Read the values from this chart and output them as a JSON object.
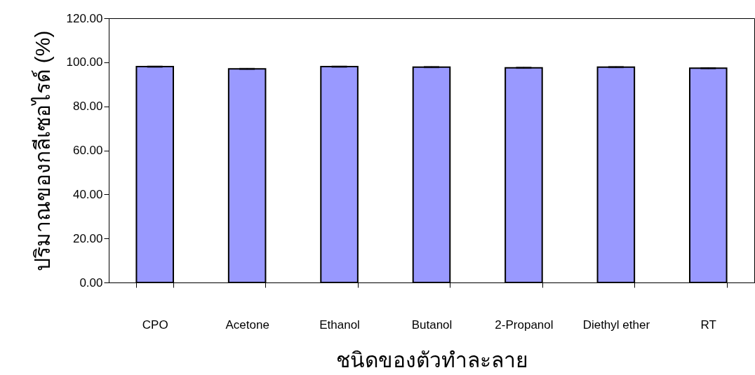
{
  "chart_data": {
    "type": "bar",
    "xlabel": "ชนิดของตัวทำละลาย",
    "ylabel": "ปริมาณของกลีเซอไรด์ (%)",
    "categories": [
      "CPO",
      "Acetone",
      "Ethanol",
      "Butanol",
      "2-Propanol",
      "Diethyl ether",
      "RT"
    ],
    "values": [
      98.0,
      97.0,
      98.0,
      97.8,
      97.5,
      97.8,
      97.3
    ],
    "errors": [
      0.3,
      0.3,
      0.3,
      0.3,
      0.3,
      0.3,
      0.3
    ],
    "color": "#9999ff",
    "ylim": [
      0,
      120
    ],
    "yticks": [
      {
        "value": 0,
        "label": "0.00"
      },
      {
        "value": 20,
        "label": "20.00"
      },
      {
        "value": 40,
        "label": "40.00"
      },
      {
        "value": 60,
        "label": "60.00"
      },
      {
        "value": 80,
        "label": "80.00"
      },
      {
        "value": 100,
        "label": "100.00"
      },
      {
        "value": 120,
        "label": "120.00"
      }
    ],
    "grid": false
  }
}
